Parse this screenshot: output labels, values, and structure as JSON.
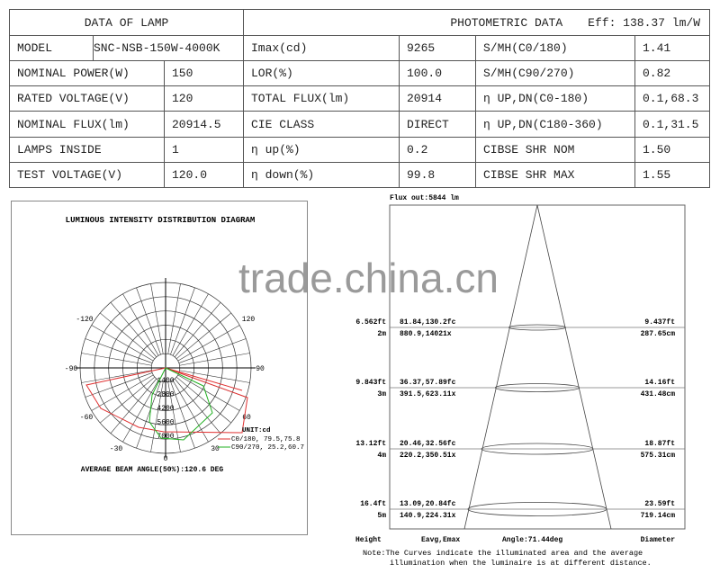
{
  "lamp": {
    "title": "DATA OF LAMP",
    "rows": [
      [
        "MODEL",
        "SNC-NSB-150W-4000K"
      ],
      [
        "NOMINAL POWER(W)",
        "150"
      ],
      [
        "RATED VOLTAGE(V)",
        "120"
      ],
      [
        "NOMINAL FLUX(lm)",
        "20914.5"
      ],
      [
        "LAMPS INSIDE",
        "1"
      ],
      [
        "TEST VOLTAGE(V)",
        "120.0"
      ]
    ]
  },
  "photo": {
    "title": "PHOTOMETRIC DATA",
    "eff": "Eff: 138.37 lm/W",
    "rows": [
      [
        "Imax(cd)",
        "9265",
        "S/MH(C0/180)",
        "1.41"
      ],
      [
        "LOR(%)",
        "100.0",
        "S/MH(C90/270)",
        "0.82"
      ],
      [
        "TOTAL FLUX(lm)",
        "20914",
        "η UP,DN(C0-180)",
        "0.1,68.3"
      ],
      [
        "CIE CLASS",
        "DIRECT",
        "η UP,DN(C180-360)",
        "0.1,31.5"
      ],
      [
        "η up(%)",
        "0.2",
        "CIBSE SHR NOM",
        "1.50"
      ],
      [
        "η down(%)",
        "99.8",
        "CIBSE SHR MAX",
        "1.55"
      ]
    ]
  },
  "polar": {
    "title": "LUMINOUS INTENSITY DISTRIBUTION DIAGRAM",
    "angles": [
      "-120",
      "120",
      "-90",
      "90",
      "-60",
      "60",
      "-30",
      "30",
      "0"
    ],
    "rings": [
      "1400",
      "2800",
      "4200",
      "5600",
      "7000"
    ],
    "unit": "UNIT:cd",
    "legend": [
      {
        "label": "C0/180, 79.5,75.8",
        "color": "#e03030"
      },
      {
        "label": "C90/270, 25.2,60.7",
        "color": "#20b020"
      }
    ],
    "beam": "AVERAGE BEAM ANGLE(50%):120.6 DEG"
  },
  "cone": {
    "flux": "Flux out:5844 lm",
    "levels": [
      {
        "ft": "6.562ft",
        "m": "2m",
        "fc": "81.84,130.2fc",
        "lx": "880.9,14021x",
        "dft": "9.437ft",
        "dcm": "287.65cm"
      },
      {
        "ft": "9.843ft",
        "m": "3m",
        "fc": "36.37,57.89fc",
        "lx": "391.5,623.11x",
        "dft": "14.16ft",
        "dcm": "431.48cm"
      },
      {
        "ft": "13.12ft",
        "m": "4m",
        "fc": "20.46,32.56fc",
        "lx": "220.2,350.51x",
        "dft": "18.87ft",
        "dcm": "575.31cm"
      },
      {
        "ft": "16.4ft",
        "m": "5m",
        "fc": "13.09,20.84fc",
        "lx": "140.9,224.31x",
        "dft": "23.59ft",
        "dcm": "719.14cm"
      }
    ],
    "height": "Height",
    "eavg": "Eavg,Emax",
    "angle": "Angle:71.44deg",
    "diameter": "Diameter",
    "note1": "Note:The Curves indicate the illuminated area and the average",
    "note2": "illumination when the luminaire is at different distance."
  },
  "watermark": "trade.china.cn"
}
